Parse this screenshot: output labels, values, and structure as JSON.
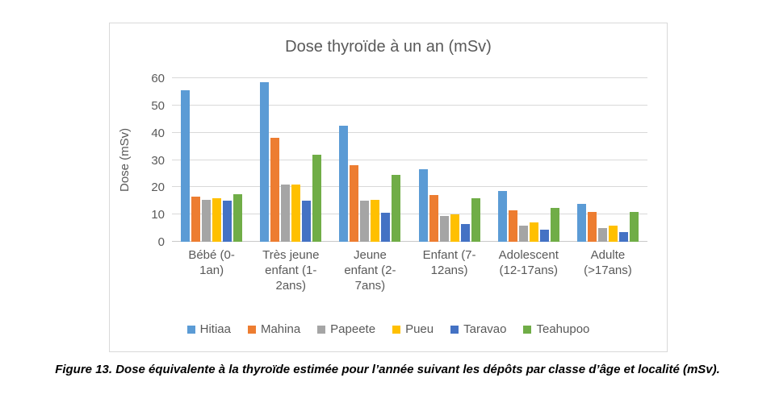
{
  "figure": {
    "caption": "Figure 13. Dose équivalente à la thyroïde estimée pour l’année suivant les dépôts par classe d’âge et localité (mSv)."
  },
  "chart_data": {
    "type": "bar",
    "title": "Dose thyroïde à un an (mSv)",
    "xlabel": "",
    "ylabel": "Dose (mSv)",
    "ylim": [
      0,
      60
    ],
    "y_ticks": [
      0,
      10,
      20,
      30,
      40,
      50,
      60
    ],
    "grid": true,
    "legend_position": "bottom",
    "text_color": "#595959",
    "gridline_color": "#d9d9d9",
    "categories": [
      "Bébé (0-1an)",
      "Très jeune enfant (1-2ans)",
      "Jeune enfant (2-7ans)",
      "Enfant (7-12ans)",
      "Adolescent (12-17ans)",
      "Adulte (>17ans)"
    ],
    "category_lines": [
      [
        "Bébé (0-",
        "1an)"
      ],
      [
        "Très jeune",
        "enfant (1-",
        "2ans)"
      ],
      [
        "Jeune",
        "enfant (2-",
        "7ans)"
      ],
      [
        "Enfant (7-",
        "12ans)"
      ],
      [
        "Adolescent",
        "(12-17ans)"
      ],
      [
        "Adulte",
        "(>17ans)"
      ]
    ],
    "series": [
      {
        "name": "Hitiaa",
        "color": "#5B9BD5",
        "values": [
          55.5,
          58.5,
          42.5,
          26.5,
          18.5,
          14
        ]
      },
      {
        "name": "Mahina",
        "color": "#ED7D31",
        "values": [
          16.5,
          38,
          28,
          17,
          11.5,
          11
        ]
      },
      {
        "name": "Papeete",
        "color": "#A5A5A5",
        "values": [
          15.5,
          21,
          15,
          9.5,
          6,
          5
        ]
      },
      {
        "name": "Pueu",
        "color": "#FFC000",
        "values": [
          16,
          21,
          15.5,
          10,
          7,
          6
        ]
      },
      {
        "name": "Taravao",
        "color": "#4472C4",
        "values": [
          15,
          15,
          10.5,
          6.5,
          4.5,
          3.5
        ]
      },
      {
        "name": "Teahupoo",
        "color": "#70AD47",
        "values": [
          17.5,
          32,
          24.5,
          16,
          12.5,
          11
        ]
      }
    ]
  }
}
